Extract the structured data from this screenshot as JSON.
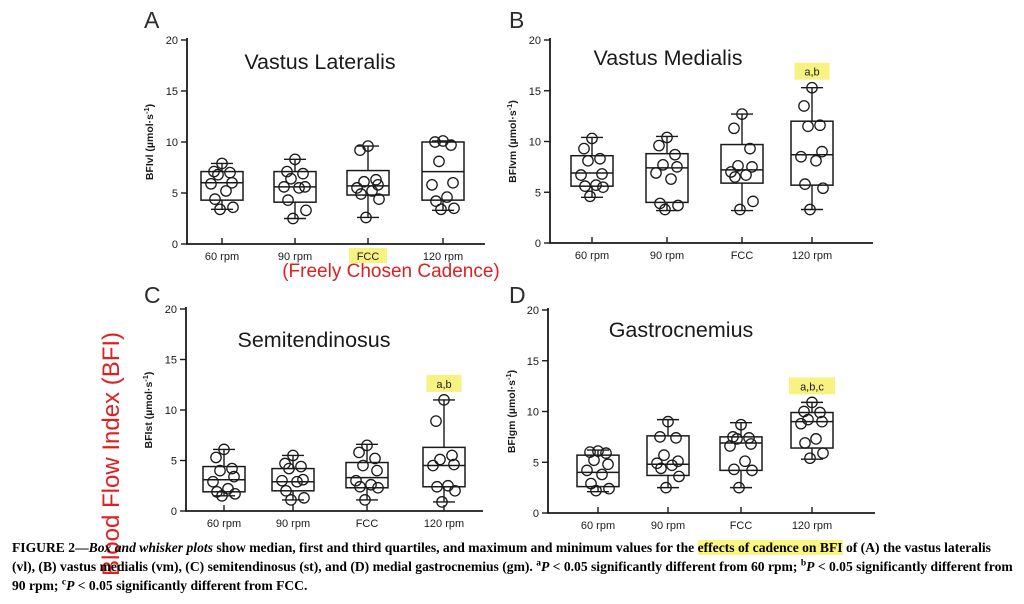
{
  "figure": {
    "side_label": "Blood Flow Index (BFI)",
    "fcc_note": "(Freely Chosen Cadence)",
    "colors": {
      "accent_red": "#dd2120",
      "highlight_yellow": "#f8f282",
      "ink": "#1a1a1a"
    },
    "caption_segments": [
      {
        "text": "FIGURE 2—",
        "style": "b"
      },
      {
        "text": "Box and whisker plots",
        "style": "bi"
      },
      {
        "text": " show median, first and third quartiles, and maximum and minimum values for the ",
        "style": "b"
      },
      {
        "text": "effects of cadence on BFI",
        "style": "b hl"
      },
      {
        "text": " of (A) the vastus lateralis (vl), (B) vastus medialis (vm), (C) semitendinosus (st), and (D) medial gastrocnemius (gm). ",
        "style": "b"
      },
      {
        "text": "a",
        "style": "sup"
      },
      {
        "text": "P",
        "style": "bi"
      },
      {
        "text": " < 0.05 significantly different from 60 rpm; ",
        "style": "b"
      },
      {
        "text": "b",
        "style": "sup"
      },
      {
        "text": "P",
        "style": "bi"
      },
      {
        "text": " < 0.05 significantly different from 90 rpm; ",
        "style": "b"
      },
      {
        "text": "c",
        "style": "sup"
      },
      {
        "text": "P",
        "style": "bi"
      },
      {
        "text": " < 0.05 significantly different from FCC.",
        "style": "b"
      }
    ]
  },
  "chart_data": [
    {
      "type": "box",
      "panel": "A",
      "title": "Vastus Lateralis",
      "ylabel": "BFIvl (µmol·s⁻¹)",
      "ylim": [
        0,
        20
      ],
      "yticks": [
        0,
        5,
        10,
        15,
        20
      ],
      "categories": [
        "60 rpm",
        "90 rpm",
        "FCC",
        "120 rpm"
      ],
      "highlighted_category": "FCC",
      "annotations": [],
      "groups": [
        {
          "category": "60 rpm",
          "min": 3.4,
          "q1": 4.3,
          "median": 6.0,
          "q3": 7.1,
          "max": 7.9,
          "points": [
            7.9,
            7.1,
            7.0,
            6.8,
            6.0,
            5.9,
            5.2,
            4.4,
            3.6,
            3.4
          ]
        },
        {
          "category": "90 rpm",
          "min": 2.5,
          "q1": 4.1,
          "median": 5.6,
          "q3": 7.1,
          "max": 8.3,
          "points": [
            8.3,
            7.1,
            6.9,
            6.4,
            5.6,
            5.6,
            5.5,
            4.3,
            3.3,
            2.5
          ]
        },
        {
          "category": "FCC",
          "min": 2.6,
          "q1": 4.8,
          "median": 5.7,
          "q3": 7.2,
          "max": 9.6,
          "points": [
            9.6,
            9.2,
            6.3,
            6.1,
            5.8,
            5.5,
            5.2,
            4.9,
            4.4,
            2.6
          ]
        },
        {
          "category": "120 rpm",
          "min": 3.3,
          "q1": 4.3,
          "median": 7.1,
          "q3": 10.0,
          "max": 10.1,
          "points": [
            10.1,
            10.0,
            9.7,
            8.1,
            6.0,
            5.8,
            4.6,
            4.2,
            3.5,
            3.4
          ]
        }
      ]
    },
    {
      "type": "box",
      "panel": "B",
      "title": "Vastus Medialis",
      "ylabel": "BFIvm (µmol·s⁻¹)",
      "ylim": [
        0,
        20
      ],
      "yticks": [
        0,
        5,
        10,
        15,
        20
      ],
      "categories": [
        "60 rpm",
        "90 rpm",
        "FCC",
        "120 rpm"
      ],
      "highlighted_category": null,
      "annotations": [
        {
          "category": "120 rpm",
          "text": "a,b"
        }
      ],
      "groups": [
        {
          "category": "60 rpm",
          "min": 4.5,
          "q1": 5.6,
          "median": 6.9,
          "q3": 8.6,
          "max": 10.4,
          "points": [
            10.3,
            9.3,
            8.3,
            8.1,
            6.8,
            6.7,
            5.7,
            5.6,
            5.5,
            4.6
          ]
        },
        {
          "category": "90 rpm",
          "min": 3.2,
          "q1": 4.0,
          "median": 7.4,
          "q3": 8.8,
          "max": 10.5,
          "points": [
            10.4,
            9.6,
            8.7,
            7.7,
            7.5,
            6.9,
            6.3,
            3.9,
            3.7,
            3.3
          ]
        },
        {
          "category": "FCC",
          "min": 3.2,
          "q1": 5.9,
          "median": 7.2,
          "q3": 9.7,
          "max": 12.7,
          "points": [
            12.7,
            11.3,
            9.3,
            7.6,
            7.5,
            7.0,
            6.7,
            6.5,
            4.1,
            3.3
          ]
        },
        {
          "category": "120 rpm",
          "min": 3.3,
          "q1": 5.7,
          "median": 8.7,
          "q3": 12.0,
          "max": 15.3,
          "points": [
            15.3,
            13.5,
            11.6,
            11.5,
            9.0,
            8.5,
            8.1,
            5.8,
            5.4,
            3.3
          ]
        }
      ]
    },
    {
      "type": "box",
      "panel": "C",
      "title": "Semitendinosus",
      "ylabel": "BFIst (µmol·s⁻¹)",
      "ylim": [
        0,
        20
      ],
      "yticks": [
        0,
        5,
        10,
        15,
        20
      ],
      "categories": [
        "60 rpm",
        "90 rpm",
        "FCC",
        "120 rpm"
      ],
      "highlighted_category": null,
      "annotations": [
        {
          "category": "120 rpm",
          "text": "a,b"
        }
      ],
      "groups": [
        {
          "category": "60 rpm",
          "min": 1.5,
          "q1": 1.9,
          "median": 3.1,
          "q3": 4.4,
          "max": 6.1,
          "points": [
            6.1,
            5.3,
            4.2,
            4.0,
            3.4,
            2.9,
            2.2,
            1.9,
            1.7,
            1.5
          ]
        },
        {
          "category": "90 rpm",
          "min": 1.1,
          "q1": 2.0,
          "median": 2.9,
          "q3": 4.2,
          "max": 5.5,
          "points": [
            5.5,
            4.7,
            4.4,
            4.2,
            3.1,
            3.0,
            2.9,
            2.0,
            1.3,
            1.1
          ]
        },
        {
          "category": "FCC",
          "min": 1.1,
          "q1": 2.3,
          "median": 3.3,
          "q3": 4.8,
          "max": 6.6,
          "points": [
            6.5,
            5.8,
            5.2,
            4.5,
            4.0,
            3.0,
            2.6,
            2.4,
            2.3,
            1.1
          ]
        },
        {
          "category": "120 rpm",
          "min": 0.9,
          "q1": 2.4,
          "median": 4.5,
          "q3": 6.3,
          "max": 11.0,
          "points": [
            11.0,
            8.9,
            5.5,
            5.1,
            4.6,
            4.5,
            2.5,
            2.4,
            2.0,
            0.9
          ]
        }
      ]
    },
    {
      "type": "box",
      "panel": "D",
      "title": "Gastrocnemius",
      "ylabel": "BFIgm (µmol·s⁻¹)",
      "ylim": [
        0,
        20
      ],
      "yticks": [
        0,
        5,
        10,
        15,
        20
      ],
      "categories": [
        "60 rpm",
        "90 rpm",
        "FCC",
        "120 rpm"
      ],
      "highlighted_category": null,
      "annotations": [
        {
          "category": "120 rpm",
          "text": "a,b,c"
        }
      ],
      "groups": [
        {
          "category": "60 rpm",
          "min": 2.1,
          "q1": 2.6,
          "median": 4.0,
          "q3": 5.7,
          "max": 6.2,
          "points": [
            6.1,
            6.0,
            5.9,
            5.2,
            4.8,
            4.2,
            3.8,
            2.9,
            2.4,
            2.2
          ]
        },
        {
          "category": "90 rpm",
          "min": 2.5,
          "q1": 3.7,
          "median": 4.8,
          "q3": 7.6,
          "max": 9.2,
          "points": [
            9.0,
            7.5,
            7.4,
            5.7,
            5.1,
            4.9,
            4.7,
            4.4,
            3.6,
            2.5
          ]
        },
        {
          "category": "FCC",
          "min": 2.5,
          "q1": 4.2,
          "median": 6.9,
          "q3": 7.5,
          "max": 8.9,
          "points": [
            8.7,
            7.5,
            7.4,
            7.3,
            6.8,
            6.6,
            5.1,
            4.3,
            4.2,
            2.5
          ]
        },
        {
          "category": "120 rpm",
          "min": 5.3,
          "q1": 6.4,
          "median": 9.0,
          "q3": 9.9,
          "max": 10.9,
          "points": [
            10.9,
            10.0,
            9.9,
            9.2,
            9.0,
            8.8,
            7.3,
            6.9,
            5.9,
            5.4
          ]
        }
      ]
    }
  ]
}
